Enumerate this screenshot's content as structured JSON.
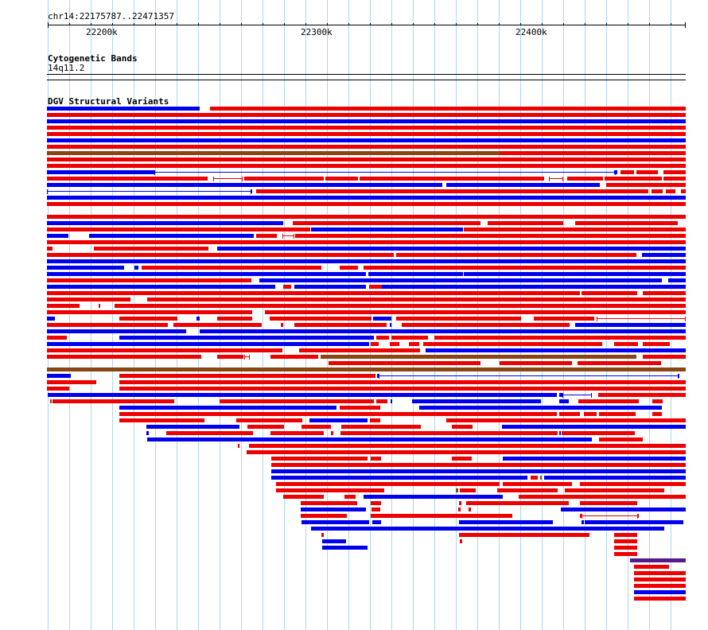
{
  "location_label": "chr14:22175787..22471357",
  "ruler": {
    "labels": [
      "22200k",
      "22300k",
      "22400k"
    ]
  },
  "tracks": [
    {
      "title": "Cytogenetic Bands",
      "band_label": "14q11.2"
    },
    {
      "title": "DGV Structural Variants"
    }
  ],
  "colors": {
    "loss": "#ee0000",
    "gain": "#0000ee",
    "gain_loss": "#8b4513",
    "complex": "#551a8b",
    "grid": "#a9d9ee"
  }
}
